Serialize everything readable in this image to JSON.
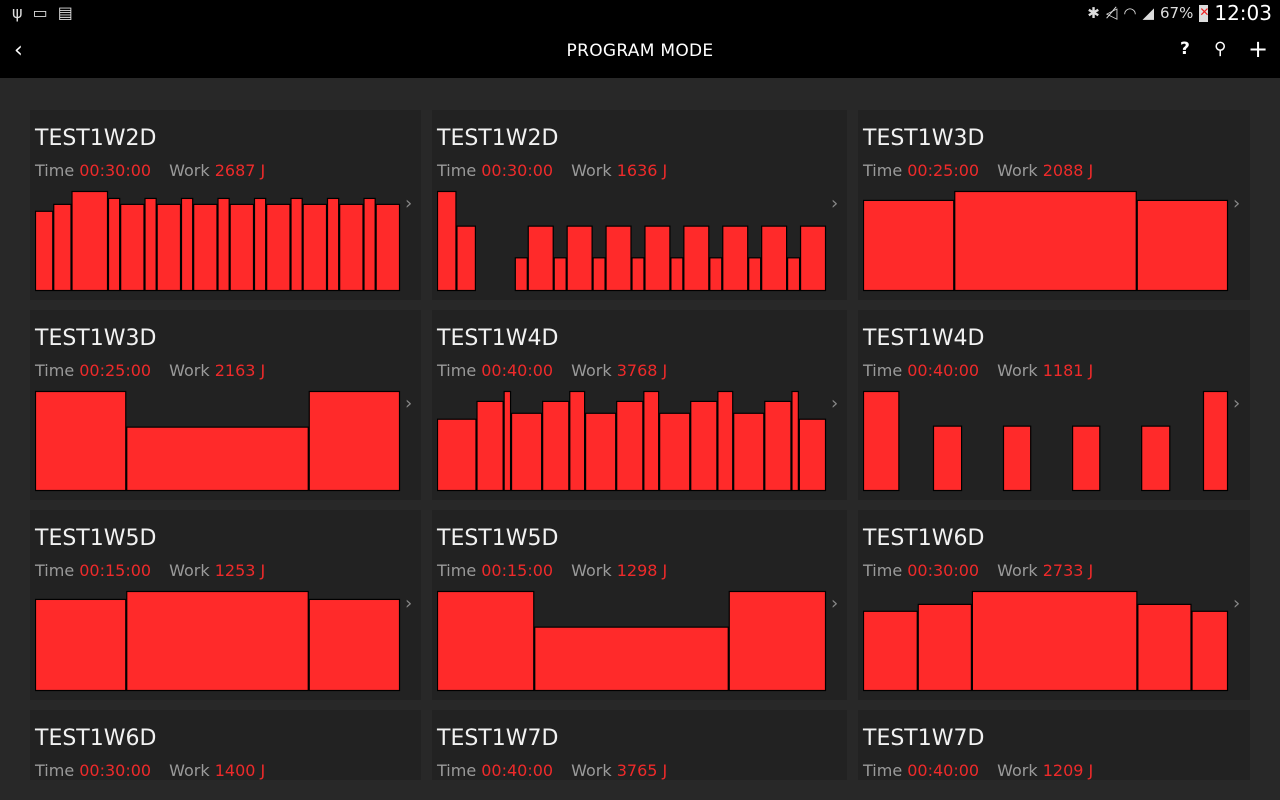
{
  "status_bar": {
    "left_icons": [
      "usb-icon",
      "screen-cast-icon",
      "sim-card-off-icon"
    ],
    "right_icons": [
      "bluetooth-icon",
      "mute-icon",
      "wifi-icon",
      "signal-icon"
    ],
    "battery": "67%",
    "time": "12:03"
  },
  "app_bar": {
    "title": "PROGRAM MODE",
    "back_icon": "chevron-left-icon",
    "actions": [
      "help-icon",
      "search-icon",
      "add-icon"
    ]
  },
  "colors": {
    "accent": "#ff2a2a",
    "card_bg": "#222222",
    "page_bg": "#282828"
  },
  "labels": {
    "time": "Time",
    "work": "Work"
  },
  "programs": [
    {
      "name": "TEST1W2D",
      "time": "00:30:00",
      "work": "2687 J",
      "profile": [
        [
          1.5,
          80
        ],
        [
          1.5,
          87
        ],
        [
          3,
          100
        ],
        [
          1,
          93
        ],
        [
          2,
          87
        ],
        [
          1,
          93
        ],
        [
          2,
          87
        ],
        [
          1,
          93
        ],
        [
          2,
          87
        ],
        [
          1,
          93
        ],
        [
          2,
          87
        ],
        [
          1,
          93
        ],
        [
          2,
          87
        ],
        [
          1,
          93
        ],
        [
          2,
          87
        ],
        [
          1,
          93
        ],
        [
          2,
          87
        ],
        [
          1,
          93
        ],
        [
          2,
          87
        ]
      ]
    },
    {
      "name": "TEST1W2D",
      "time": "00:30:00",
      "work": "1636 J",
      "profile": [
        [
          1.5,
          100
        ],
        [
          1.5,
          65
        ],
        [
          3,
          0
        ],
        [
          1,
          33
        ],
        [
          2,
          65
        ],
        [
          1,
          33
        ],
        [
          2,
          65
        ],
        [
          1,
          33
        ],
        [
          2,
          65
        ],
        [
          1,
          33
        ],
        [
          2,
          65
        ],
        [
          1,
          33
        ],
        [
          2,
          65
        ],
        [
          1,
          33
        ],
        [
          2,
          65
        ],
        [
          1,
          33
        ],
        [
          2,
          65
        ],
        [
          1,
          33
        ],
        [
          2,
          65
        ]
      ]
    },
    {
      "name": "TEST1W3D",
      "time": "00:25:00",
      "work": "2088 J",
      "profile": [
        [
          6.25,
          91
        ],
        [
          12.5,
          100
        ],
        [
          6.25,
          91
        ]
      ]
    },
    {
      "name": "TEST1W3D",
      "time": "00:25:00",
      "work": "2163 J",
      "profile": [
        [
          6.25,
          100
        ],
        [
          12.5,
          64
        ],
        [
          6.25,
          100
        ]
      ]
    },
    {
      "name": "TEST1W4D",
      "time": "00:40:00",
      "work": "3768 J",
      "profile": [
        [
          4,
          72
        ],
        [
          2.75,
          90
        ],
        [
          0.75,
          100
        ],
        [
          3.15,
          78
        ],
        [
          2.75,
          90
        ],
        [
          1.6,
          100
        ],
        [
          3.15,
          78
        ],
        [
          2.75,
          90
        ],
        [
          1.6,
          100
        ],
        [
          3.15,
          78
        ],
        [
          2.75,
          90
        ],
        [
          1.6,
          100
        ],
        [
          3.15,
          78
        ],
        [
          2.75,
          90
        ],
        [
          0.75,
          100
        ],
        [
          2.75,
          72
        ]
      ]
    },
    {
      "name": "TEST1W4D",
      "time": "00:40:00",
      "work": "1181 J",
      "profile": [
        [
          4,
          100
        ],
        [
          3.7,
          0
        ],
        [
          3.2,
          65
        ],
        [
          4.5,
          0
        ],
        [
          3.1,
          65
        ],
        [
          4.5,
          0
        ],
        [
          3.1,
          65
        ],
        [
          4.5,
          0
        ],
        [
          3.2,
          65
        ],
        [
          3.6,
          0
        ],
        [
          2.75,
          100
        ]
      ]
    },
    {
      "name": "TEST1W5D",
      "time": "00:15:00",
      "work": "1253 J",
      "profile": [
        [
          3.75,
          92
        ],
        [
          7.5,
          100
        ],
        [
          3.75,
          92
        ]
      ]
    },
    {
      "name": "TEST1W5D",
      "time": "00:15:00",
      "work": "1298 J",
      "profile": [
        [
          3.75,
          100
        ],
        [
          7.5,
          64
        ],
        [
          3.75,
          100
        ]
      ]
    },
    {
      "name": "TEST1W6D",
      "time": "00:30:00",
      "work": "2733 J",
      "profile": [
        [
          4.5,
          80
        ],
        [
          4.45,
          87
        ],
        [
          13.6,
          100
        ],
        [
          4.45,
          87
        ],
        [
          3,
          80
        ]
      ]
    },
    {
      "name": "TEST1W6D",
      "time": "00:30:00",
      "work": "1400 J",
      "profile": []
    },
    {
      "name": "TEST1W7D",
      "time": "00:40:00",
      "work": "3765 J",
      "profile": []
    },
    {
      "name": "TEST1W7D",
      "time": "00:40:00",
      "work": "1209 J",
      "profile": []
    }
  ]
}
